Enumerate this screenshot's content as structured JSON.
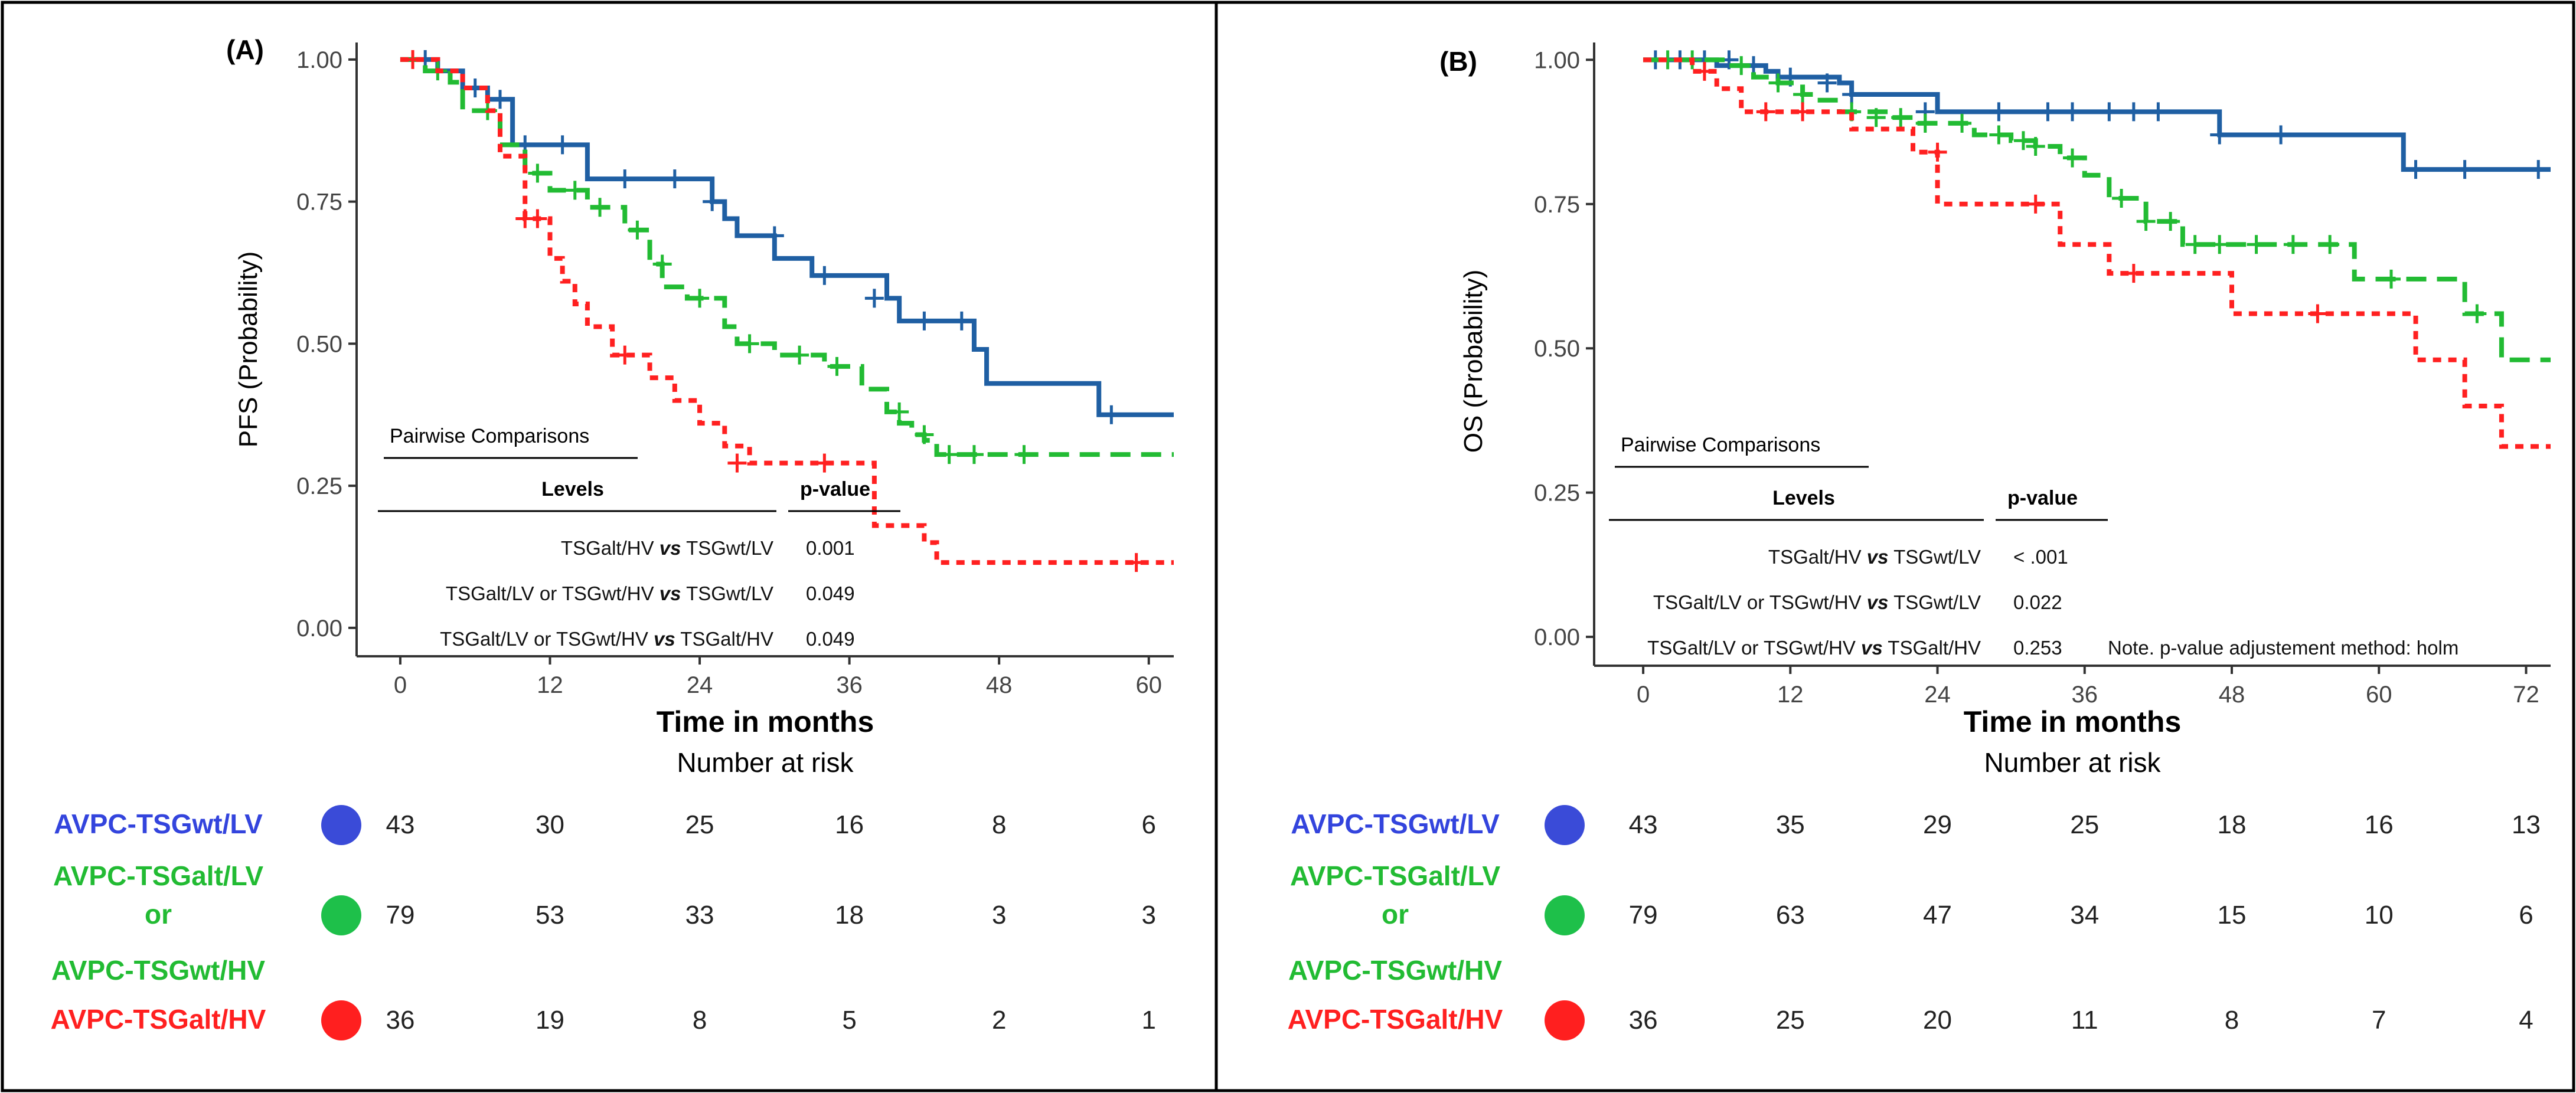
{
  "colors": {
    "blue_line": "#1f5fa3",
    "green_line": "#22bb33",
    "red_line": "#ff2020",
    "blue_label": "#3344dd",
    "green_label": "#22bb33",
    "red_label": "#ff2020",
    "blue_dot": "#3a4bd8",
    "green_dot": "#1ec04a",
    "red_dot": "#ff1f1f"
  },
  "chart_data": [
    {
      "type": "line",
      "panel_label": "(A)",
      "ylabel": "PFS (Probability)",
      "xlabel": "Time in months",
      "xlim": [
        -3.5,
        62
      ],
      "ylim": [
        -0.05,
        1.03
      ],
      "xticks": [
        "0",
        "12",
        "24",
        "36",
        "48",
        "60"
      ],
      "xtick_values": [
        0,
        12,
        24,
        36,
        48,
        60
      ],
      "yticks": [
        "0.00",
        "0.25",
        "0.50",
        "0.75",
        "1.00"
      ],
      "ytick_values": [
        0,
        0.25,
        0.5,
        0.75,
        1
      ],
      "series": [
        {
          "name": "AVPC-TSGwt/LV",
          "color_key": "blue_line",
          "dash": "solid",
          "x": [
            0,
            3,
            5,
            7,
            9,
            15,
            25,
            26,
            27,
            30,
            33,
            39,
            40,
            46,
            47,
            56,
            62
          ],
          "y": [
            1.0,
            0.98,
            0.95,
            0.93,
            0.85,
            0.79,
            0.75,
            0.72,
            0.69,
            0.65,
            0.62,
            0.58,
            0.54,
            0.49,
            0.43,
            0.375,
            0.375
          ],
          "censor_x": [
            2,
            6,
            8,
            10,
            13,
            18,
            22,
            25,
            30,
            34,
            38,
            42,
            45,
            57
          ],
          "censor_y": [
            1.0,
            0.95,
            0.93,
            0.85,
            0.85,
            0.79,
            0.79,
            0.75,
            0.69,
            0.62,
            0.58,
            0.54,
            0.54,
            0.375
          ]
        },
        {
          "name": "AVPC-TSGalt/LV or AVPC-TSGwt/HV",
          "color_key": "green_line",
          "dash": "dashed",
          "x": [
            0,
            2,
            4,
            5,
            8,
            10,
            12,
            15,
            18,
            20,
            21,
            23,
            26,
            27,
            30,
            34,
            37,
            39,
            40,
            41,
            42,
            43,
            62
          ],
          "y": [
            1.0,
            0.98,
            0.96,
            0.91,
            0.85,
            0.8,
            0.77,
            0.74,
            0.7,
            0.64,
            0.6,
            0.58,
            0.53,
            0.5,
            0.48,
            0.46,
            0.42,
            0.38,
            0.36,
            0.34,
            0.33,
            0.305,
            0.305
          ],
          "censor_x": [
            3,
            7,
            11,
            14,
            16,
            19,
            21,
            24,
            28,
            32,
            35,
            40,
            42,
            44,
            46,
            50
          ],
          "censor_y": [
            0.98,
            0.91,
            0.8,
            0.77,
            0.74,
            0.7,
            0.64,
            0.58,
            0.5,
            0.48,
            0.46,
            0.38,
            0.34,
            0.305,
            0.305,
            0.305
          ]
        },
        {
          "name": "AVPC-TSGalt/HV",
          "color_key": "red_line",
          "dash": "dotted",
          "x": [
            0,
            3,
            5,
            7,
            8,
            10,
            12,
            13,
            14,
            15,
            17,
            20,
            22,
            24,
            26,
            28,
            36,
            38,
            42,
            43,
            62
          ],
          "y": [
            1.0,
            0.98,
            0.95,
            0.91,
            0.83,
            0.72,
            0.65,
            0.61,
            0.57,
            0.53,
            0.48,
            0.44,
            0.4,
            0.36,
            0.32,
            0.29,
            0.29,
            0.18,
            0.15,
            0.115,
            0.115
          ],
          "censor_x": [
            1,
            10,
            11,
            18,
            27,
            34,
            59
          ],
          "censor_y": [
            1.0,
            0.72,
            0.72,
            0.48,
            0.29,
            0.29,
            0.115
          ]
        }
      ],
      "table": {
        "title": "Pairwise Comparisons",
        "col_levels": "Levels",
        "col_p": "p-value",
        "vs": "vs",
        "rows": [
          {
            "left": "TSGalt/HV",
            "right": "TSGwt/LV",
            "p": "0.001"
          },
          {
            "left": "TSGalt/LV or TSGwt/HV",
            "right": "TSGwt/LV",
            "p": "0.049"
          },
          {
            "left": "TSGalt/LV or TSGwt/HV",
            "right": "TSGalt/HV",
            "p": "0.049"
          }
        ]
      },
      "risk_title": "Number at risk",
      "risk": [
        [
          43,
          30,
          25,
          16,
          8,
          6
        ],
        [
          79,
          53,
          33,
          18,
          3,
          3
        ],
        [
          36,
          19,
          8,
          5,
          2,
          1
        ]
      ]
    },
    {
      "type": "line",
      "panel_label": "(B)",
      "ylabel": "OS (Probability)",
      "xlabel": "Time in months",
      "xlim": [
        -4,
        74
      ],
      "ylim": [
        -0.05,
        1.03
      ],
      "xticks": [
        "0",
        "12",
        "24",
        "36",
        "48",
        "60",
        "72"
      ],
      "xtick_values": [
        0,
        12,
        24,
        36,
        48,
        60,
        72
      ],
      "yticks": [
        "0.00",
        "0.25",
        "0.50",
        "0.75",
        "1.00"
      ],
      "ytick_values": [
        0,
        0.25,
        0.5,
        0.75,
        1
      ],
      "series": [
        {
          "name": "AVPC-TSGwt/LV",
          "color_key": "blue_line",
          "dash": "solid",
          "x": [
            0,
            6,
            10,
            11,
            16,
            17,
            24,
            31,
            47,
            62,
            74
          ],
          "y": [
            1.0,
            0.99,
            0.98,
            0.97,
            0.96,
            0.94,
            0.91,
            0.91,
            0.87,
            0.81,
            0.81
          ],
          "censor_x": [
            1,
            3,
            5,
            7,
            9,
            12,
            15,
            17,
            23,
            29,
            33,
            35,
            38,
            40,
            42,
            47,
            52,
            63,
            67,
            73
          ],
          "censor_y": [
            1.0,
            1.0,
            1.0,
            1.0,
            0.99,
            0.97,
            0.96,
            0.94,
            0.91,
            0.91,
            0.91,
            0.91,
            0.91,
            0.91,
            0.91,
            0.87,
            0.87,
            0.81,
            0.81,
            0.81
          ]
        },
        {
          "name": "AVPC-TSGalt/LV or AVPC-TSGwt/HV",
          "color_key": "green_line",
          "dash": "dashed",
          "x": [
            0,
            7,
            9,
            11,
            13,
            14,
            16,
            20,
            22,
            27,
            30,
            32,
            34,
            36,
            38,
            41,
            44,
            53,
            58,
            67,
            70,
            74
          ],
          "y": [
            1.0,
            0.99,
            0.97,
            0.96,
            0.94,
            0.93,
            0.91,
            0.9,
            0.89,
            0.87,
            0.86,
            0.85,
            0.83,
            0.8,
            0.76,
            0.72,
            0.68,
            0.68,
            0.62,
            0.56,
            0.48,
            0.48
          ],
          "censor_x": [
            2,
            4,
            8,
            11,
            13,
            17,
            19,
            21,
            23,
            26,
            29,
            31,
            32,
            35,
            39,
            41,
            43,
            45,
            47,
            50,
            53,
            56,
            61,
            68
          ],
          "censor_y": [
            1.0,
            1.0,
            0.99,
            0.96,
            0.94,
            0.91,
            0.9,
            0.9,
            0.89,
            0.89,
            0.87,
            0.86,
            0.85,
            0.83,
            0.76,
            0.72,
            0.72,
            0.68,
            0.68,
            0.68,
            0.68,
            0.68,
            0.62,
            0.56
          ]
        },
        {
          "name": "AVPC-TSGalt/HV",
          "color_key": "red_line",
          "dash": "dotted",
          "x": [
            0,
            4,
            6,
            8,
            17,
            22,
            24,
            33,
            34,
            38,
            48,
            58,
            63,
            64,
            67,
            69,
            70,
            74
          ],
          "y": [
            1.0,
            0.98,
            0.95,
            0.91,
            0.88,
            0.84,
            0.75,
            0.75,
            0.68,
            0.63,
            0.56,
            0.56,
            0.48,
            0.48,
            0.4,
            0.4,
            0.33,
            0.33
          ],
          "censor_x": [
            5,
            10,
            13,
            24,
            32,
            40,
            55
          ],
          "censor_y": [
            0.98,
            0.91,
            0.91,
            0.84,
            0.75,
            0.63,
            0.56
          ]
        }
      ],
      "table": {
        "title": "Pairwise Comparisons",
        "col_levels": "Levels",
        "col_p": "p-value",
        "vs": "vs",
        "rows": [
          {
            "left": "TSGalt/HV",
            "right": "TSGwt/LV",
            "p": "< .001"
          },
          {
            "left": "TSGalt/LV or TSGwt/HV",
            "right": "TSGwt/LV",
            "p": "0.022"
          },
          {
            "left": "TSGalt/LV or TSGwt/HV",
            "right": "TSGalt/HV",
            "p": "0.253"
          }
        ],
        "note": "Note. p-value adjustement method: holm"
      },
      "risk_title": "Number at risk",
      "risk": [
        [
          43,
          35,
          29,
          25,
          18,
          16,
          13
        ],
        [
          79,
          63,
          47,
          34,
          15,
          10,
          6
        ],
        [
          36,
          25,
          20,
          11,
          8,
          7,
          4
        ]
      ]
    }
  ],
  "legend": {
    "blue": [
      "AVPC-TSGwt/LV"
    ],
    "green": [
      "AVPC-TSGalt/LV",
      "or",
      "AVPC-TSGwt/HV"
    ],
    "red": [
      "AVPC-TSGalt/HV"
    ]
  }
}
